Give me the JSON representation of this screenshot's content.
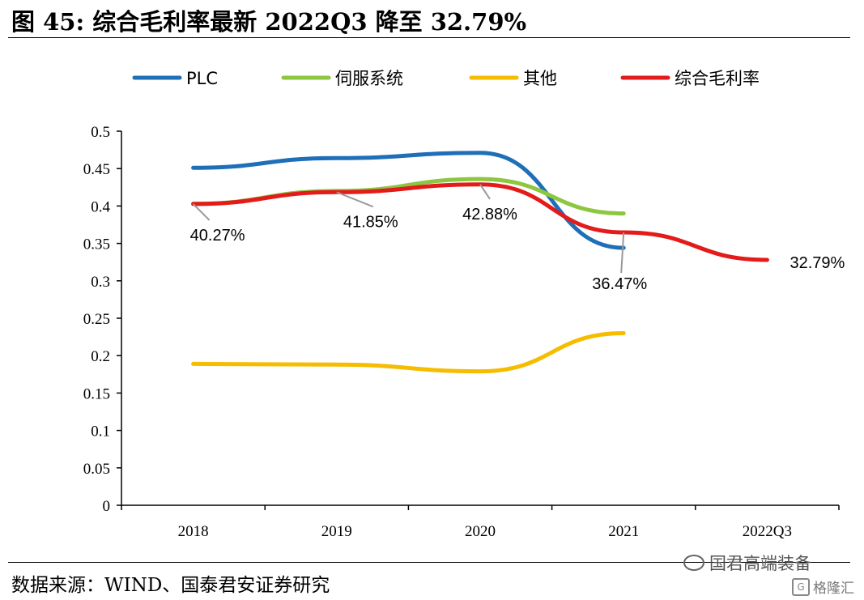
{
  "figure": {
    "title": "图 45:  综合毛利率最新 2022Q3 降至 32.79%",
    "source": "数据来源：WIND、国泰君安证券研究",
    "watermark": "国君高端装备",
    "watermark2": "格隆汇"
  },
  "chart_data": {
    "type": "line",
    "title": "",
    "xlabel": "",
    "ylabel": "",
    "categories": [
      "2018",
      "2019",
      "2020",
      "2021",
      "2022Q3"
    ],
    "ylim": [
      0,
      0.5
    ],
    "yticks": [
      0,
      0.05,
      0.1,
      0.15,
      0.2,
      0.25,
      0.3,
      0.35,
      0.4,
      0.45,
      0.5
    ],
    "ytick_labels": [
      "0",
      "0.05",
      "0.1",
      "0.15",
      "0.2",
      "0.25",
      "0.3",
      "0.35",
      "0.4",
      "0.45",
      "0.5"
    ],
    "grid": false,
    "legend_position": "top",
    "series": [
      {
        "name": "PLC",
        "color": "#1F6FB8",
        "values": [
          0.451,
          0.464,
          0.471,
          0.344,
          null
        ]
      },
      {
        "name": "伺服系统",
        "color": "#8DC63F",
        "values": [
          0.403,
          0.42,
          0.436,
          0.39,
          null
        ]
      },
      {
        "name": "其他",
        "color": "#F5BC00",
        "values": [
          0.189,
          0.188,
          0.179,
          0.23,
          null
        ]
      },
      {
        "name": "综合毛利率",
        "color": "#E31B1B",
        "values": [
          0.4027,
          0.4185,
          0.4288,
          0.3647,
          0.3279
        ]
      }
    ],
    "annotations": [
      {
        "series": "综合毛利率",
        "index": 0,
        "text": "40.27%"
      },
      {
        "series": "综合毛利率",
        "index": 1,
        "text": "41.85%"
      },
      {
        "series": "综合毛利率",
        "index": 2,
        "text": "42.88%"
      },
      {
        "series": "综合毛利率",
        "index": 3,
        "text": "36.47%"
      },
      {
        "series": "综合毛利率",
        "index": 4,
        "text": "32.79%"
      }
    ]
  }
}
